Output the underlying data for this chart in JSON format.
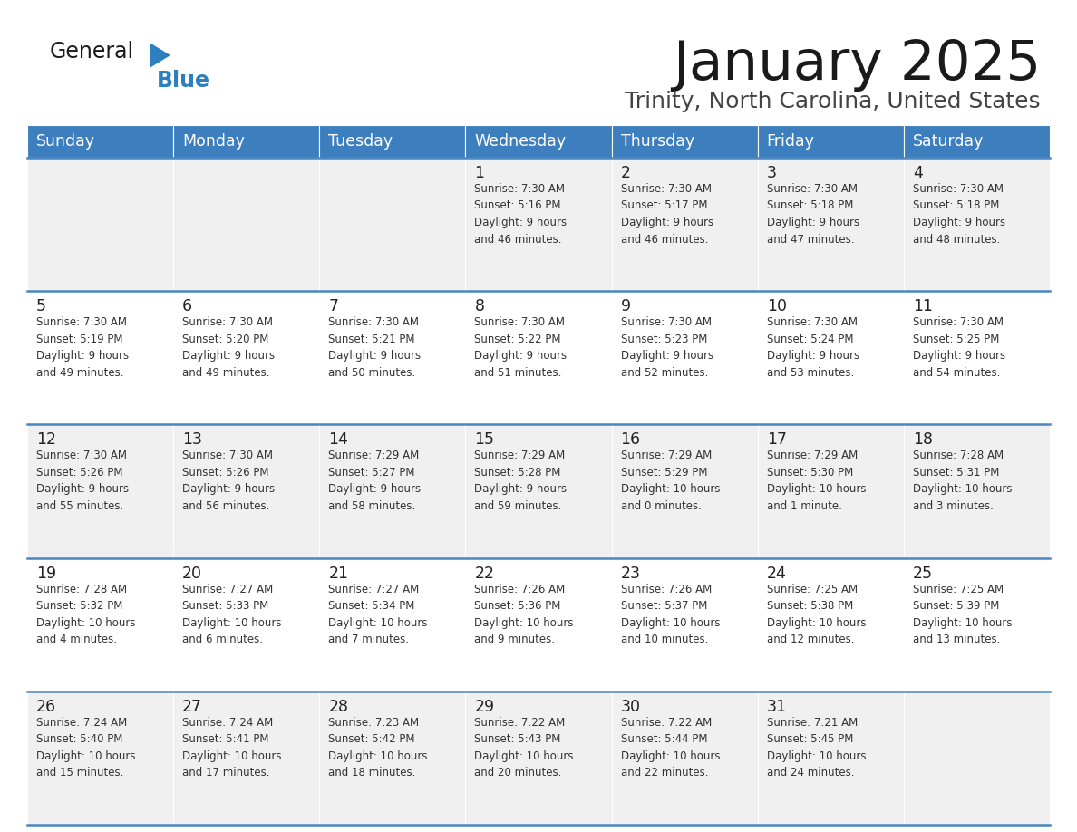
{
  "title": "January 2025",
  "subtitle": "Trinity, North Carolina, United States",
  "header_bg": "#3d7ebf",
  "header_text_color": "#ffffff",
  "row_bg_light": "#f0f0f0",
  "row_bg_white": "#ffffff",
  "border_color": "#4a86c0",
  "text_color": "#333333",
  "day_num_color": "#222222",
  "days_of_week": [
    "Sunday",
    "Monday",
    "Tuesday",
    "Wednesday",
    "Thursday",
    "Friday",
    "Saturday"
  ],
  "weeks": [
    [
      {
        "day": "",
        "info": ""
      },
      {
        "day": "",
        "info": ""
      },
      {
        "day": "",
        "info": ""
      },
      {
        "day": "1",
        "info": "Sunrise: 7:30 AM\nSunset: 5:16 PM\nDaylight: 9 hours\nand 46 minutes."
      },
      {
        "day": "2",
        "info": "Sunrise: 7:30 AM\nSunset: 5:17 PM\nDaylight: 9 hours\nand 46 minutes."
      },
      {
        "day": "3",
        "info": "Sunrise: 7:30 AM\nSunset: 5:18 PM\nDaylight: 9 hours\nand 47 minutes."
      },
      {
        "day": "4",
        "info": "Sunrise: 7:30 AM\nSunset: 5:18 PM\nDaylight: 9 hours\nand 48 minutes."
      }
    ],
    [
      {
        "day": "5",
        "info": "Sunrise: 7:30 AM\nSunset: 5:19 PM\nDaylight: 9 hours\nand 49 minutes."
      },
      {
        "day": "6",
        "info": "Sunrise: 7:30 AM\nSunset: 5:20 PM\nDaylight: 9 hours\nand 49 minutes."
      },
      {
        "day": "7",
        "info": "Sunrise: 7:30 AM\nSunset: 5:21 PM\nDaylight: 9 hours\nand 50 minutes."
      },
      {
        "day": "8",
        "info": "Sunrise: 7:30 AM\nSunset: 5:22 PM\nDaylight: 9 hours\nand 51 minutes."
      },
      {
        "day": "9",
        "info": "Sunrise: 7:30 AM\nSunset: 5:23 PM\nDaylight: 9 hours\nand 52 minutes."
      },
      {
        "day": "10",
        "info": "Sunrise: 7:30 AM\nSunset: 5:24 PM\nDaylight: 9 hours\nand 53 minutes."
      },
      {
        "day": "11",
        "info": "Sunrise: 7:30 AM\nSunset: 5:25 PM\nDaylight: 9 hours\nand 54 minutes."
      }
    ],
    [
      {
        "day": "12",
        "info": "Sunrise: 7:30 AM\nSunset: 5:26 PM\nDaylight: 9 hours\nand 55 minutes."
      },
      {
        "day": "13",
        "info": "Sunrise: 7:30 AM\nSunset: 5:26 PM\nDaylight: 9 hours\nand 56 minutes."
      },
      {
        "day": "14",
        "info": "Sunrise: 7:29 AM\nSunset: 5:27 PM\nDaylight: 9 hours\nand 58 minutes."
      },
      {
        "day": "15",
        "info": "Sunrise: 7:29 AM\nSunset: 5:28 PM\nDaylight: 9 hours\nand 59 minutes."
      },
      {
        "day": "16",
        "info": "Sunrise: 7:29 AM\nSunset: 5:29 PM\nDaylight: 10 hours\nand 0 minutes."
      },
      {
        "day": "17",
        "info": "Sunrise: 7:29 AM\nSunset: 5:30 PM\nDaylight: 10 hours\nand 1 minute."
      },
      {
        "day": "18",
        "info": "Sunrise: 7:28 AM\nSunset: 5:31 PM\nDaylight: 10 hours\nand 3 minutes."
      }
    ],
    [
      {
        "day": "19",
        "info": "Sunrise: 7:28 AM\nSunset: 5:32 PM\nDaylight: 10 hours\nand 4 minutes."
      },
      {
        "day": "20",
        "info": "Sunrise: 7:27 AM\nSunset: 5:33 PM\nDaylight: 10 hours\nand 6 minutes."
      },
      {
        "day": "21",
        "info": "Sunrise: 7:27 AM\nSunset: 5:34 PM\nDaylight: 10 hours\nand 7 minutes."
      },
      {
        "day": "22",
        "info": "Sunrise: 7:26 AM\nSunset: 5:36 PM\nDaylight: 10 hours\nand 9 minutes."
      },
      {
        "day": "23",
        "info": "Sunrise: 7:26 AM\nSunset: 5:37 PM\nDaylight: 10 hours\nand 10 minutes."
      },
      {
        "day": "24",
        "info": "Sunrise: 7:25 AM\nSunset: 5:38 PM\nDaylight: 10 hours\nand 12 minutes."
      },
      {
        "day": "25",
        "info": "Sunrise: 7:25 AM\nSunset: 5:39 PM\nDaylight: 10 hours\nand 13 minutes."
      }
    ],
    [
      {
        "day": "26",
        "info": "Sunrise: 7:24 AM\nSunset: 5:40 PM\nDaylight: 10 hours\nand 15 minutes."
      },
      {
        "day": "27",
        "info": "Sunrise: 7:24 AM\nSunset: 5:41 PM\nDaylight: 10 hours\nand 17 minutes."
      },
      {
        "day": "28",
        "info": "Sunrise: 7:23 AM\nSunset: 5:42 PM\nDaylight: 10 hours\nand 18 minutes."
      },
      {
        "day": "29",
        "info": "Sunrise: 7:22 AM\nSunset: 5:43 PM\nDaylight: 10 hours\nand 20 minutes."
      },
      {
        "day": "30",
        "info": "Sunrise: 7:22 AM\nSunset: 5:44 PM\nDaylight: 10 hours\nand 22 minutes."
      },
      {
        "day": "31",
        "info": "Sunrise: 7:21 AM\nSunset: 5:45 PM\nDaylight: 10 hours\nand 24 minutes."
      },
      {
        "day": "",
        "info": ""
      }
    ]
  ],
  "logo_color_general": "#1a1a1a",
  "logo_color_blue": "#2e7fc0",
  "logo_color_triangle": "#2e7fc0"
}
